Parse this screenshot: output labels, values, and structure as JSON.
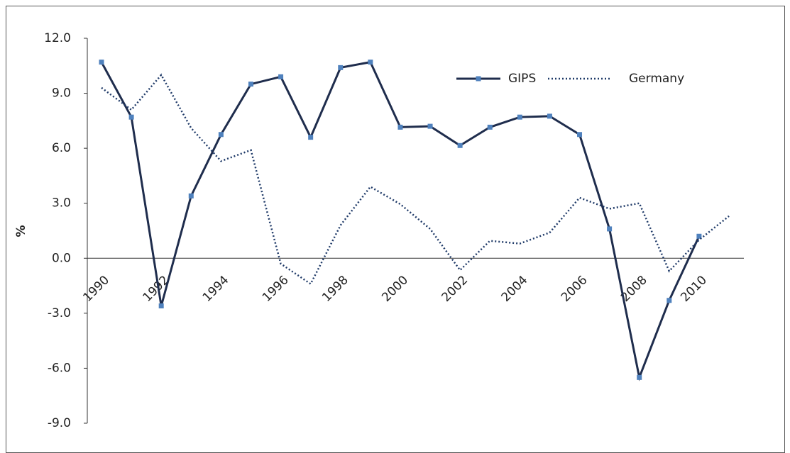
{
  "chart_data": {
    "type": "line",
    "y_label": "%",
    "x": [
      1990,
      1991,
      1992,
      1993,
      1994,
      1995,
      1996,
      1997,
      1998,
      1999,
      2000,
      2001,
      2002,
      2003,
      2004,
      2005,
      2006,
      2007,
      2008,
      2009,
      2010,
      2011
    ],
    "series": [
      {
        "name": "GIPS",
        "color": "#1f2d4d",
        "marker_color": "#4f81bd",
        "line_style": "solid",
        "marker": "square",
        "values": [
          10.7,
          7.7,
          -2.6,
          3.4,
          6.75,
          9.5,
          9.9,
          6.6,
          10.4,
          10.7,
          7.15,
          7.2,
          6.15,
          7.15,
          7.7,
          7.75,
          6.75,
          1.6,
          -6.5,
          -2.3,
          1.2,
          null
        ]
      },
      {
        "name": "Germany",
        "color": "#1f3a68",
        "line_style": "dotted",
        "values": [
          9.3,
          8.1,
          10.0,
          7.1,
          5.3,
          5.9,
          -0.3,
          -1.4,
          1.8,
          3.9,
          2.95,
          1.6,
          -0.65,
          0.95,
          0.8,
          1.4,
          3.3,
          2.7,
          3.0,
          -0.7,
          1.0,
          2.3
        ]
      }
    ],
    "xlim": [
      1990,
      2011
    ],
    "xticks": [
      1990,
      1992,
      1994,
      1996,
      1998,
      2000,
      2002,
      2004,
      2006,
      2008,
      2010
    ],
    "ylim": [
      -9,
      12
    ],
    "yticks": [
      {
        "value": -9,
        "label": "-9.0"
      },
      {
        "value": -6,
        "label": "-6.0"
      },
      {
        "value": -3,
        "label": "-3.0"
      },
      {
        "value": 0,
        "label": "0.0"
      },
      {
        "value": 3,
        "label": "3.0"
      },
      {
        "value": 6,
        "label": "6.0"
      },
      {
        "value": 9,
        "label": "9.0"
      },
      {
        "value": 12,
        "label": "12.0"
      }
    ],
    "grid": false,
    "legend": "top-right"
  }
}
